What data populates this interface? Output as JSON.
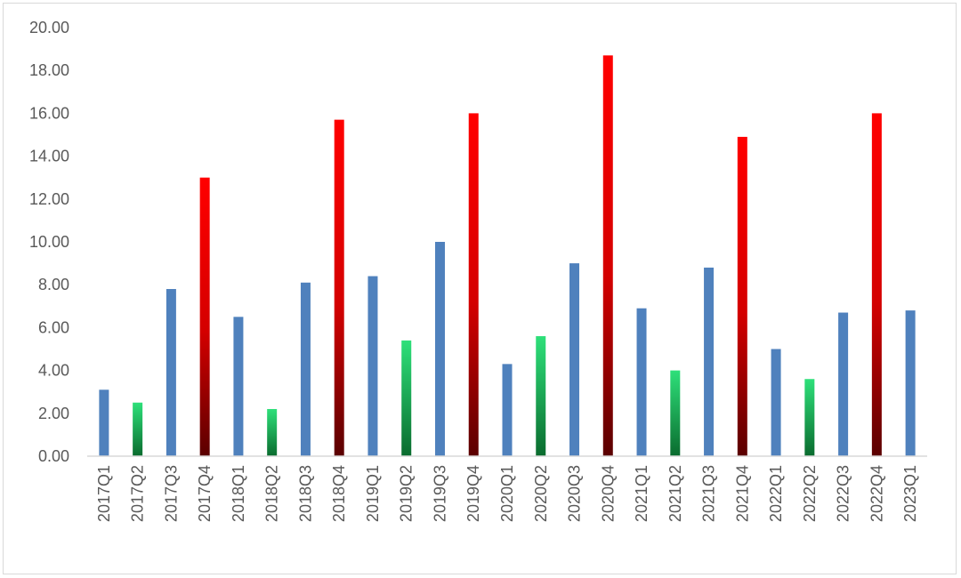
{
  "chart_data": {
    "type": "bar",
    "title": "",
    "xlabel": "",
    "ylabel": "",
    "ylim": [
      0,
      20
    ],
    "yticks": [
      "0.00",
      "2.00",
      "4.00",
      "6.00",
      "8.00",
      "10.00",
      "12.00",
      "14.00",
      "16.00",
      "18.00",
      "20.00"
    ],
    "grid": false,
    "legend": "none",
    "categories": [
      "2017Q1",
      "2017Q2",
      "2017Q3",
      "2017Q4",
      "2018Q1",
      "2018Q2",
      "2018Q3",
      "2018Q4",
      "2019Q1",
      "2019Q2",
      "2019Q3",
      "2019Q4",
      "2020Q1",
      "2020Q2",
      "2020Q3",
      "2020Q4",
      "2021Q1",
      "2021Q2",
      "2021Q3",
      "2021Q4",
      "2022Q1",
      "2022Q2",
      "2022Q3",
      "2022Q4",
      "2023Q1"
    ],
    "values": [
      3.1,
      2.5,
      7.8,
      13.0,
      6.5,
      2.2,
      8.1,
      15.7,
      8.4,
      5.4,
      10.0,
      16.0,
      4.3,
      5.6,
      9.0,
      18.7,
      6.9,
      4.0,
      8.8,
      14.9,
      5.0,
      3.6,
      6.7,
      16.0,
      6.8
    ],
    "colors": {
      "Q1": "#4f81bd",
      "Q2": "#2ecc71",
      "Q3": "#4f81bd",
      "Q4": "#e60000"
    }
  }
}
